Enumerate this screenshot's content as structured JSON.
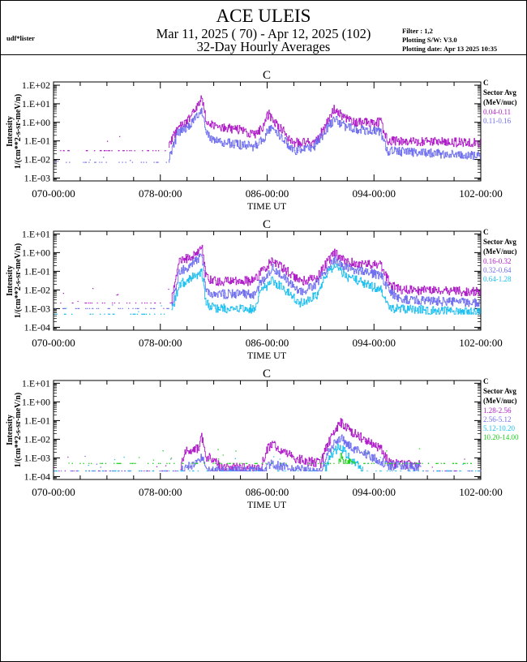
{
  "header": {
    "title": "ACE ULEIS",
    "date_range": "Mar 11, 2025 ( 70) - Apr 12, 2025 (102)",
    "subtitle": "32-Day Hourly Averages",
    "user": "udf*lister",
    "filter": "Filter : 1,2",
    "software": "Plotting S/W: V3.0",
    "plot_date": "Plotting date: Apr 13 2025 10:35"
  },
  "chart_data": [
    {
      "type": "line",
      "title": "C",
      "xlabel": "TIME UT",
      "ylabel": [
        "Intensity",
        "1/(cm**2-s-sr-meV/n)"
      ],
      "yscale": "log",
      "ylim": [
        0.0007,
        150
      ],
      "yticks": [
        "1.E+02",
        "1.E+01",
        "1.E+00",
        "1.E-01",
        "1.E-02",
        "1.E-03"
      ],
      "ytick_values": [
        100,
        10,
        1,
        0.1,
        0.01,
        0.001
      ],
      "xlim": [
        70,
        102
      ],
      "xticks": [
        "070-00:00",
        "078-00:00",
        "086-00:00",
        "094-00:00",
        "102-00:00"
      ],
      "xtick_values": [
        70,
        78,
        86,
        94,
        102
      ],
      "legend": {
        "species": "C",
        "heading1": "Sector Avg",
        "heading2": "(MeV/nuc)",
        "placement": "right"
      },
      "series": [
        {
          "name": "0.04-0.11",
          "color": "#b020c8",
          "floor": 0.03,
          "sparse_until": 78.6,
          "sparse_from": 200,
          "profile": [
            [
              70,
              0.03
            ],
            [
              78.6,
              0.04
            ],
            [
              79.3,
              0.6
            ],
            [
              80,
              1
            ],
            [
              80.8,
              8
            ],
            [
              81.1,
              18
            ],
            [
              81.4,
              1.5
            ],
            [
              82,
              0.6
            ],
            [
              84,
              0.4
            ],
            [
              85,
              0.2
            ],
            [
              85.6,
              0.5
            ],
            [
              86.1,
              3
            ],
            [
              86.5,
              1
            ],
            [
              87.3,
              0.3
            ],
            [
              87.8,
              0.08
            ],
            [
              89.5,
              0.08
            ],
            [
              90.3,
              0.5
            ],
            [
              91,
              5
            ],
            [
              91.7,
              2
            ],
            [
              92.5,
              1
            ],
            [
              94.5,
              1
            ],
            [
              95,
              0.1
            ],
            [
              102,
              0.08
            ]
          ]
        },
        {
          "name": "0.11-0.16",
          "color": "#7070f0",
          "floor": 0.007,
          "sparse_until": 78.6,
          "sparse_from": 200,
          "profile": [
            [
              70,
              0.007
            ],
            [
              78.6,
              0.008
            ],
            [
              79.3,
              0.3
            ],
            [
              80,
              0.5
            ],
            [
              81.1,
              4
            ],
            [
              81.4,
              0.3
            ],
            [
              82,
              0.1
            ],
            [
              85,
              0.05
            ],
            [
              85.6,
              0.1
            ],
            [
              86.3,
              0.6
            ],
            [
              87.3,
              0.1
            ],
            [
              88,
              0.03
            ],
            [
              89.5,
              0.05
            ],
            [
              90.3,
              0.3
            ],
            [
              91,
              1.5
            ],
            [
              92,
              0.5
            ],
            [
              94.5,
              0.3
            ],
            [
              95,
              0.03
            ],
            [
              102,
              0.015
            ]
          ]
        }
      ]
    },
    {
      "type": "line",
      "title": "C",
      "xlabel": "TIME UT",
      "ylabel": [
        "Intensity",
        "1/(cm**2-s-sr-meV/n)"
      ],
      "yscale": "log",
      "ylim": [
        7e-05,
        14
      ],
      "yticks": [
        "1.E+01",
        "1.E+00",
        "1.E-01",
        "1.E-02",
        "1.E-03",
        "1.E-04"
      ],
      "ytick_values": [
        10,
        1,
        0.1,
        0.01,
        0.001,
        0.0001
      ],
      "xlim": [
        70,
        102
      ],
      "xticks": [
        "070-00:00",
        "078-00:00",
        "086-00:00",
        "094-00:00",
        "102-00:00"
      ],
      "xtick_values": [
        70,
        78,
        86,
        94,
        102
      ],
      "legend": {
        "species": "C",
        "heading1": "Sector Avg",
        "heading2": "(MeV/nuc)",
        "placement": "right"
      },
      "series": [
        {
          "name": "0.16-0.32",
          "color": "#b020c8",
          "floor": 0.002,
          "sparse_until": 78.8,
          "sparse_from": 200,
          "profile": [
            [
              70,
              0.002
            ],
            [
              78.8,
              0.002
            ],
            [
              79.4,
              0.3
            ],
            [
              80,
              0.5
            ],
            [
              80.8,
              1
            ],
            [
              81.1,
              3
            ],
            [
              81.4,
              0.05
            ],
            [
              82,
              0.03
            ],
            [
              85,
              0.03
            ],
            [
              85.6,
              0.1
            ],
            [
              86.4,
              0.4
            ],
            [
              87.5,
              0.1
            ],
            [
              88.5,
              0.03
            ],
            [
              89.7,
              0.04
            ],
            [
              90.3,
              0.2
            ],
            [
              91,
              1
            ],
            [
              92,
              0.3
            ],
            [
              94.5,
              0.2
            ],
            [
              95.2,
              0.02
            ],
            [
              96,
              0.01
            ],
            [
              102,
              0.008
            ]
          ]
        },
        {
          "name": "0.32-0.64",
          "color": "#7070f0",
          "floor": 0.001,
          "sparse_until": 78.8,
          "sparse_from": 200,
          "profile": [
            [
              70,
              0.001
            ],
            [
              78.8,
              0.001
            ],
            [
              79.4,
              0.1
            ],
            [
              80,
              0.15
            ],
            [
              81.1,
              0.7
            ],
            [
              81.4,
              0.01
            ],
            [
              82,
              0.006
            ],
            [
              85,
              0.006
            ],
            [
              85.6,
              0.03
            ],
            [
              86.4,
              0.15
            ],
            [
              87.5,
              0.03
            ],
            [
              88.5,
              0.008
            ],
            [
              89.7,
              0.02
            ],
            [
              90.3,
              0.1
            ],
            [
              91,
              0.4
            ],
            [
              92,
              0.15
            ],
            [
              94.5,
              0.06
            ],
            [
              95.2,
              0.008
            ],
            [
              96,
              0.003
            ],
            [
              102,
              0.002
            ]
          ]
        },
        {
          "name": "0.64-1.28",
          "color": "#20c0f0",
          "floor": 0.0005,
          "sparse_until": 78.8,
          "sparse_from": 200,
          "profile": [
            [
              70,
              0.0005
            ],
            [
              78.8,
              0.0005
            ],
            [
              79.4,
              0.02
            ],
            [
              80,
              0.03
            ],
            [
              81.1,
              0.1
            ],
            [
              81.4,
              0.002
            ],
            [
              82,
              0.001
            ],
            [
              85,
              0.001
            ],
            [
              85.6,
              0.01
            ],
            [
              86.4,
              0.03
            ],
            [
              87.5,
              0.008
            ],
            [
              88.5,
              0.002
            ],
            [
              89.7,
              0.005
            ],
            [
              90.3,
              0.05
            ],
            [
              91,
              0.2
            ],
            [
              92,
              0.05
            ],
            [
              94.5,
              0.01
            ],
            [
              95.2,
              0.001
            ],
            [
              102,
              0.0006
            ]
          ]
        }
      ]
    },
    {
      "type": "line",
      "title": "C",
      "xlabel": "TIME UT",
      "ylabel": [
        "Intensity",
        "1/(cm**2-s-sr-meV/n)"
      ],
      "yscale": "log",
      "ylim": [
        7e-05,
        14
      ],
      "yticks": [
        "1.E+01",
        "1.E+00",
        "1.E-01",
        "1.E-02",
        "1.E-03",
        "1.E-04"
      ],
      "ytick_values": [
        10,
        1,
        0.1,
        0.01,
        0.001,
        0.0001
      ],
      "xlim": [
        70,
        102
      ],
      "xticks": [
        "070-00:00",
        "078-00:00",
        "086-00:00",
        "094-00:00",
        "102-00:00"
      ],
      "xtick_values": [
        70,
        78,
        86,
        94,
        102
      ],
      "legend": {
        "species": "C",
        "heading1": "Sector Avg",
        "heading2": "(MeV/nuc)",
        "placement": "right"
      },
      "series": [
        {
          "name": "1.28-2.56",
          "color": "#b020c8",
          "floor": 0.0002,
          "sparse_until": 79.5,
          "sparse_from": 97.5,
          "profile": [
            [
              70,
              0.0002
            ],
            [
              79.5,
              0.0003
            ],
            [
              79.8,
              0.002
            ],
            [
              80.8,
              0.003
            ],
            [
              81.1,
              0.013
            ],
            [
              81.4,
              0.001
            ],
            [
              82,
              0.001
            ],
            [
              82.5,
              0.0003
            ],
            [
              85.5,
              0.0003
            ],
            [
              86,
              0.003
            ],
            [
              86.5,
              0.005
            ],
            [
              87.3,
              0.002
            ],
            [
              88,
              0.001
            ],
            [
              90,
              0.0005
            ],
            [
              90.5,
              0.005
            ],
            [
              91.5,
              0.08
            ],
            [
              92.5,
              0.02
            ],
            [
              93.5,
              0.008
            ],
            [
              94.5,
              0.003
            ],
            [
              95.2,
              0.0005
            ],
            [
              102,
              0.0003
            ]
          ]
        },
        {
          "name": "2.56-5.12",
          "color": "#7070f0",
          "floor": 0.0002,
          "sparse_until": 79.5,
          "sparse_from": 97.5,
          "profile": [
            [
              70,
              0.0002
            ],
            [
              79.5,
              0.0002
            ],
            [
              80.5,
              0.0005
            ],
            [
              81.1,
              0.001
            ],
            [
              81.5,
              0.0002
            ],
            [
              85.8,
              0.0002
            ],
            [
              86.3,
              0.0005
            ],
            [
              87.5,
              0.0003
            ],
            [
              90,
              0.0002
            ],
            [
              90.7,
              0.003
            ],
            [
              91.5,
              0.012
            ],
            [
              92.5,
              0.003
            ],
            [
              94,
              0.001
            ],
            [
              95,
              0.0004
            ],
            [
              102,
              0.0002
            ]
          ]
        },
        {
          "name": "5.12-10.20",
          "color": "#20c0f0",
          "floor": 0.0002,
          "sparse_until": 90.3,
          "sparse_from": 93.2,
          "profile": [
            [
              70,
              0.0002
            ],
            [
              90.3,
              0.0002
            ],
            [
              90.8,
              0.0015
            ],
            [
              91.4,
              0.004
            ],
            [
              92,
              0.0015
            ],
            [
              92.6,
              0.0005
            ],
            [
              93.2,
              0.0002
            ],
            [
              102,
              0.0002
            ]
          ]
        },
        {
          "name": "10.20-14.00",
          "color": "#20d020",
          "floor": 0.0005,
          "sparse_until": 91.3,
          "sparse_from": 92.6,
          "profile": [
            [
              70,
              0.0005
            ],
            [
              91.3,
              0.0005
            ],
            [
              91.5,
              0.0012
            ],
            [
              91.7,
              0.0005
            ],
            [
              92.6,
              0.0005
            ],
            [
              102,
              0.0005
            ]
          ]
        }
      ]
    }
  ]
}
